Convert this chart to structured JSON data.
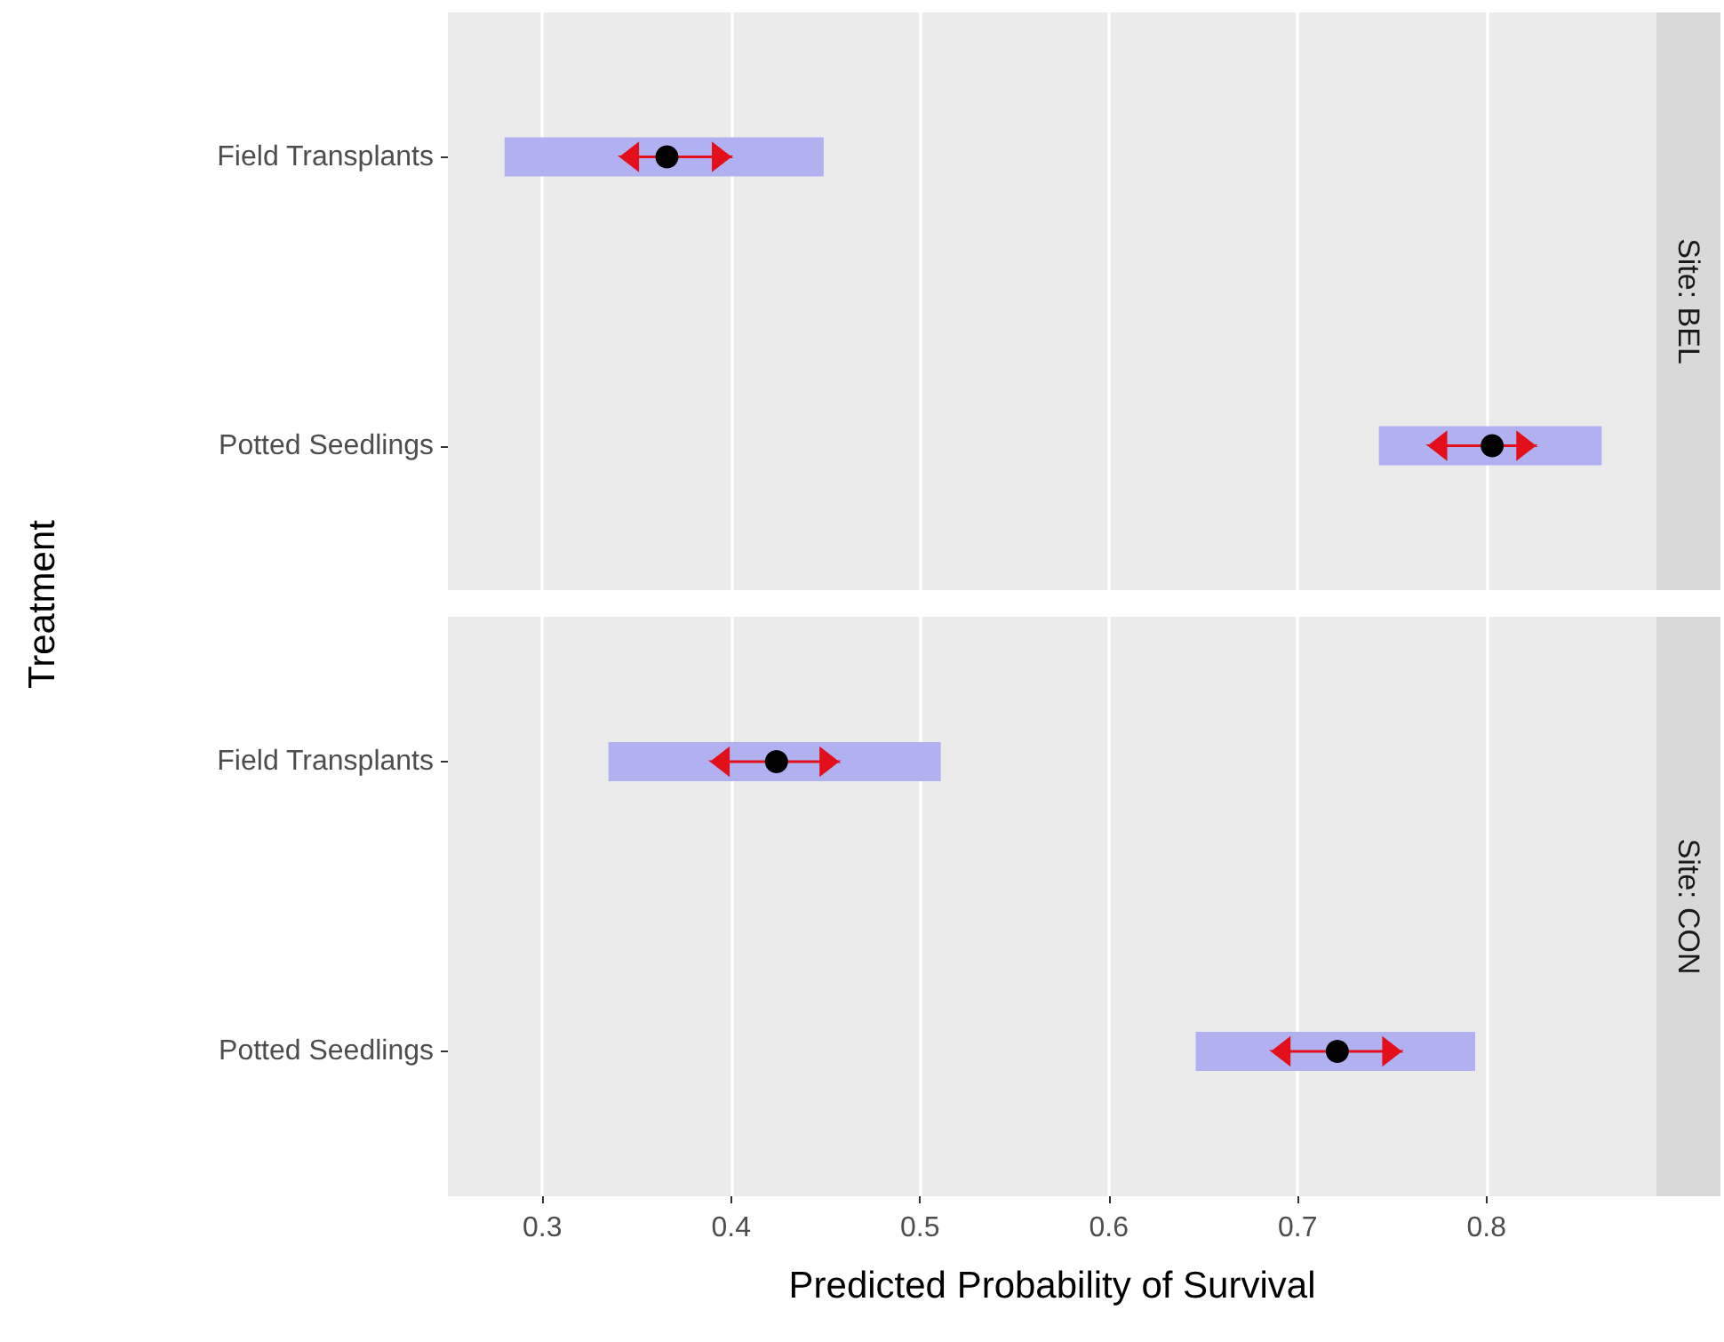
{
  "chart_data": [
    {
      "type": "bar",
      "title": "Site: BEL",
      "ylabel": "Treatment",
      "orientation": "horizontal",
      "categories": [
        "Field Transplants",
        "Potted Seedlings"
      ],
      "xlim": [
        0.25,
        0.89
      ],
      "xticks": [
        0.3,
        0.4,
        0.5,
        0.6,
        0.7,
        0.8
      ],
      "grid": "x",
      "tick_labels": "y",
      "series": [
        {
          "color": "#b1b1f1",
          "base": [
            0.28,
            0.743
          ],
          "values": [
            0.169,
            0.118
          ]
        },
        {
          "type": "scatter",
          "color": "#000000",
          "marker": "circle",
          "values": [
            0.366,
            0.803
          ],
          "errors": [
            [
              0.342,
              0.399
            ],
            [
              0.77,
              0.825
            ]
          ]
        }
      ]
    },
    {
      "type": "bar",
      "title": "Site: CON",
      "xlabel": "Predicted Probability of Survival",
      "orientation": "horizontal",
      "categories": [
        "Field Transplants",
        "Potted Seedlings"
      ],
      "xlim": [
        0.25,
        0.89
      ],
      "xticks": [
        0.3,
        0.4,
        0.5,
        0.6,
        0.7,
        0.8
      ],
      "grid": "x",
      "series": [
        {
          "color": "#b1b1f1",
          "base": [
            0.335,
            0.646
          ],
          "values": [
            0.176,
            0.148
          ]
        },
        {
          "type": "scatter",
          "color": "#000000",
          "marker": "circle",
          "values": [
            0.424,
            0.721
          ],
          "errors": [
            [
              0.39,
              0.456
            ],
            [
              0.687,
              0.754
            ]
          ]
        }
      ]
    }
  ]
}
